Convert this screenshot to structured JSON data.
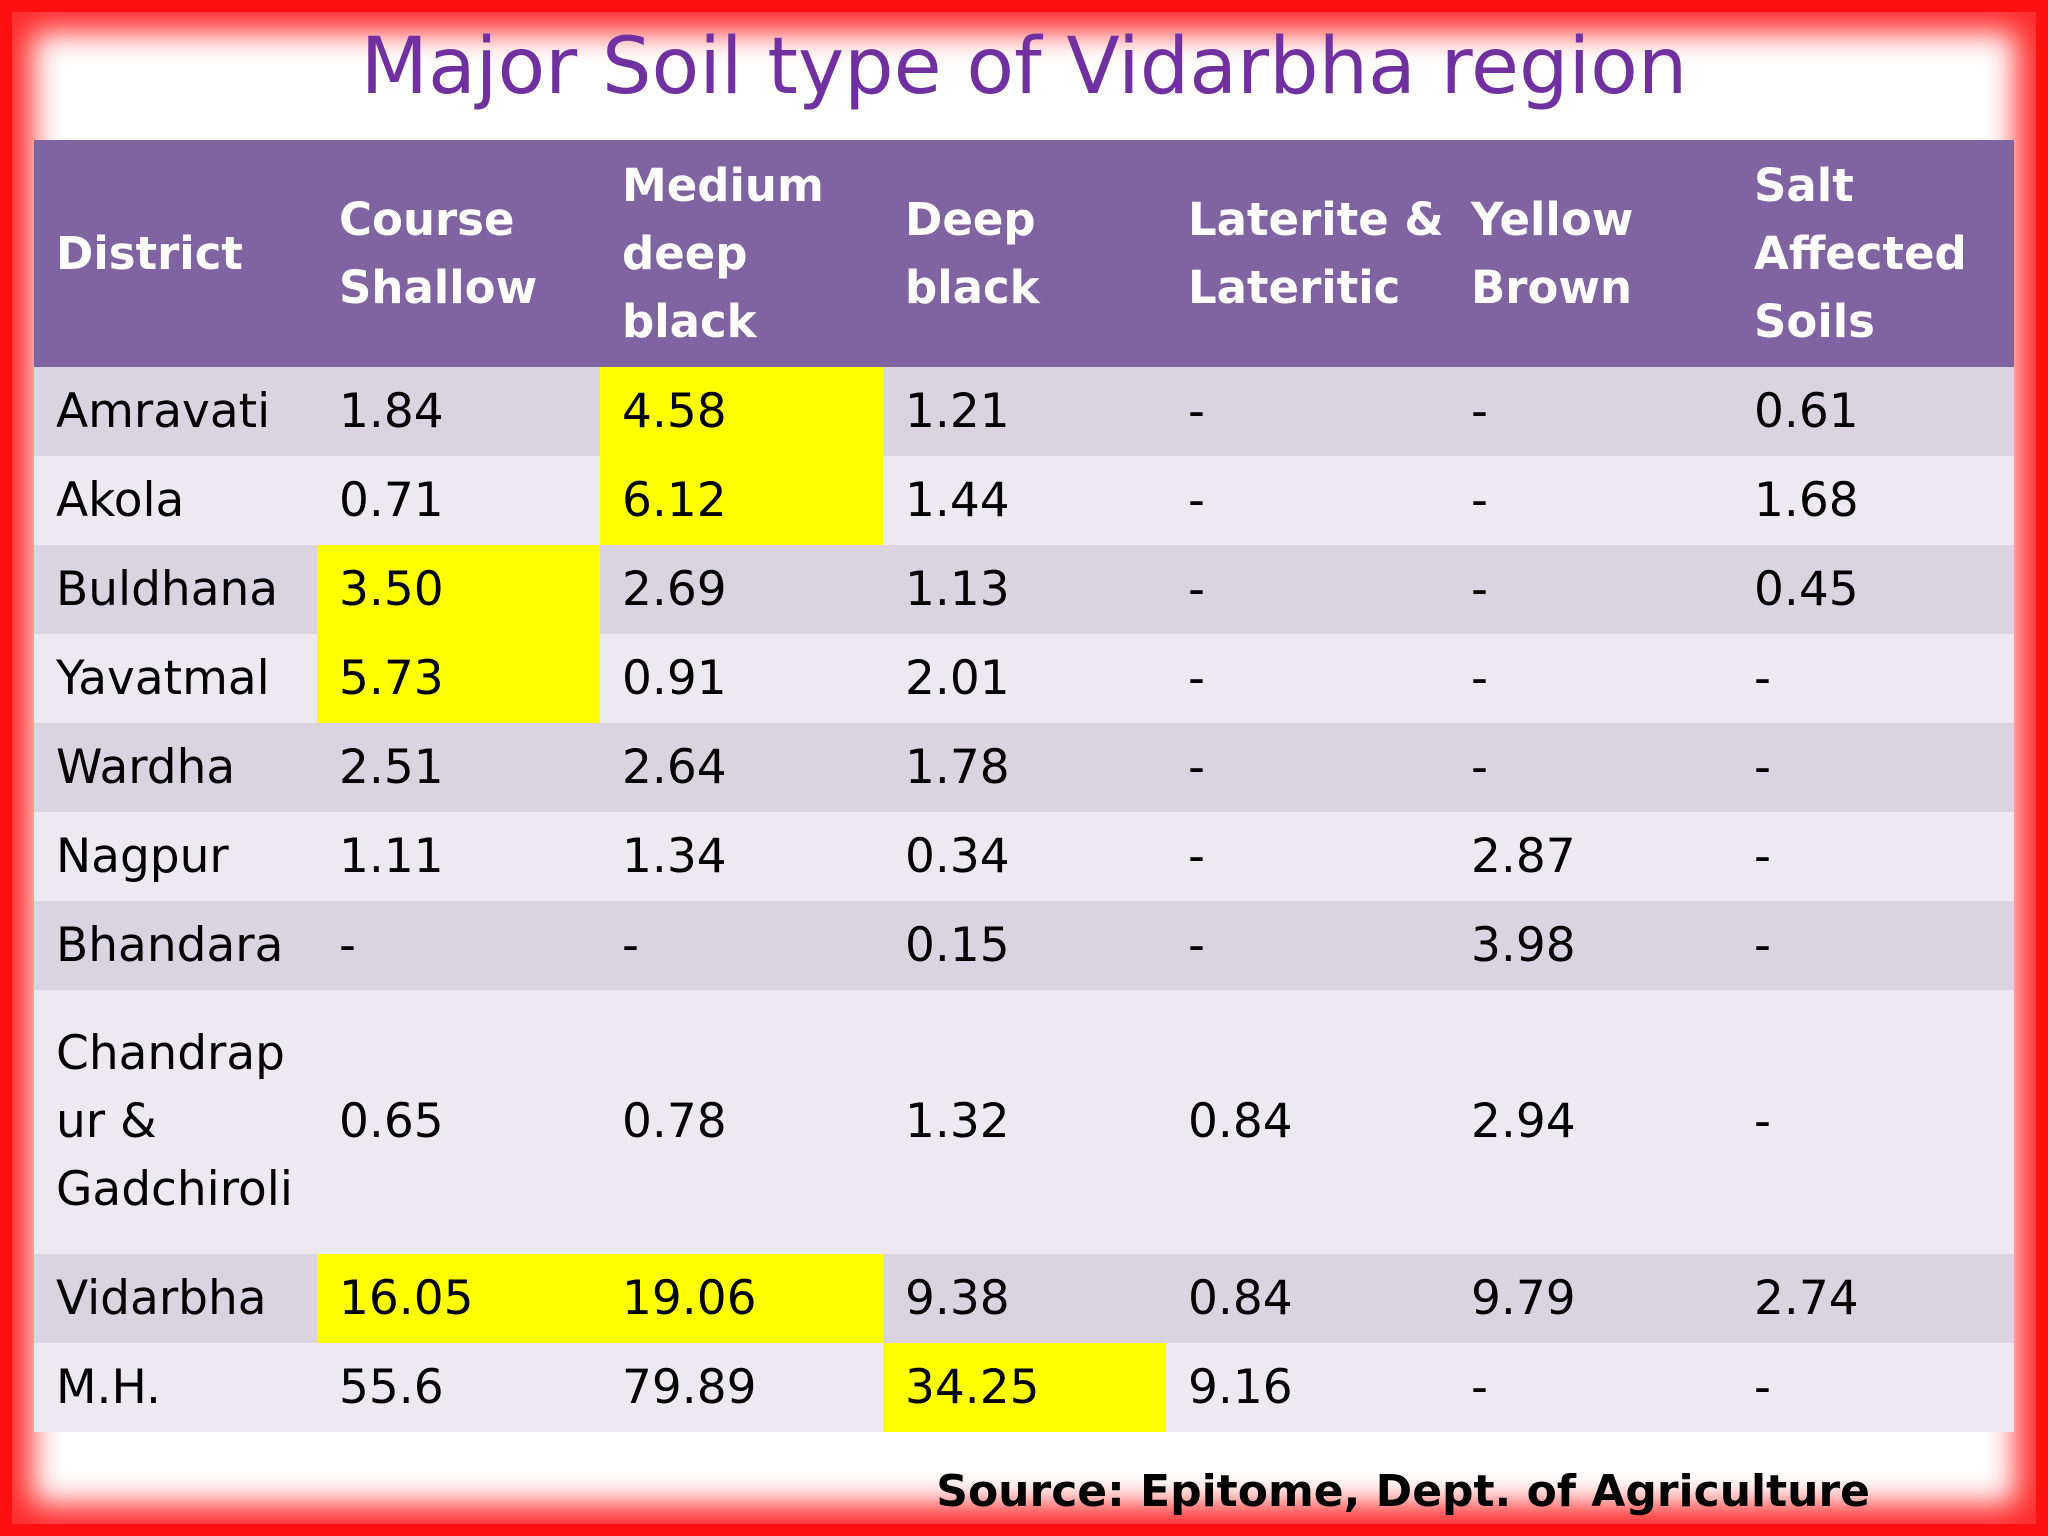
{
  "title": "Major Soil type of  Vidarbha region",
  "columns": [
    [
      "District"
    ],
    [
      "Course",
      "Shallow"
    ],
    [
      "Medium",
      "deep",
      "black"
    ],
    [
      "Deep",
      "black"
    ],
    [
      "Laterite &",
      "Lateritic"
    ],
    [
      "Yellow",
      "Brown"
    ],
    [
      "Salt",
      "Affected",
      "Soils"
    ]
  ],
  "rows": [
    {
      "district": [
        "Amravati"
      ],
      "values": [
        "1.84",
        "4.58",
        "1.21",
        "-",
        "-",
        "0.61"
      ],
      "highlight": [
        false,
        true,
        false,
        false,
        false,
        false
      ]
    },
    {
      "district": [
        "Akola"
      ],
      "values": [
        "0.71",
        "6.12",
        "1.44",
        "-",
        "-",
        "1.68"
      ],
      "highlight": [
        false,
        true,
        false,
        false,
        false,
        false
      ]
    },
    {
      "district": [
        "Buldhana"
      ],
      "values": [
        "3.50",
        "2.69",
        "1.13",
        "-",
        "-",
        "0.45"
      ],
      "highlight": [
        true,
        false,
        false,
        false,
        false,
        false
      ]
    },
    {
      "district": [
        "Yavatmal"
      ],
      "values": [
        "5.73",
        "0.91",
        "2.01",
        "-",
        "-",
        "-"
      ],
      "highlight": [
        true,
        false,
        false,
        false,
        false,
        false
      ]
    },
    {
      "district": [
        "Wardha"
      ],
      "values": [
        "2.51",
        "2.64",
        "1.78",
        "-",
        "-",
        "-"
      ],
      "highlight": [
        false,
        false,
        false,
        false,
        false,
        false
      ]
    },
    {
      "district": [
        "Nagpur"
      ],
      "values": [
        "1.11",
        "1.34",
        "0.34",
        "-",
        "2.87",
        "-"
      ],
      "highlight": [
        false,
        false,
        false,
        false,
        false,
        false
      ]
    },
    {
      "district": [
        "Bhandara"
      ],
      "values": [
        "-",
        "-",
        "0.15",
        "-",
        "3.98",
        "-"
      ],
      "highlight": [
        false,
        false,
        false,
        false,
        false,
        false
      ]
    },
    {
      "district": [
        "Chandrap",
        "ur &",
        "Gadchiroli"
      ],
      "values": [
        "0.65",
        "0.78",
        "1.32",
        "0.84",
        "2.94",
        "-"
      ],
      "highlight": [
        false,
        false,
        false,
        false,
        false,
        false
      ]
    },
    {
      "district": [
        "Vidarbha"
      ],
      "values": [
        "16.05",
        "19.06",
        "9.38",
        "0.84",
        "9.79",
        "2.74"
      ],
      "highlight": [
        true,
        true,
        false,
        false,
        false,
        false
      ]
    },
    {
      "district": [
        "M.H."
      ],
      "values": [
        "55.6",
        "79.89",
        "34.25",
        "9.16",
        "-",
        "-"
      ],
      "highlight": [
        false,
        false,
        true,
        false,
        false,
        false
      ]
    }
  ],
  "source": "Source: Epitome, Dept. of Agriculture",
  "colors": {
    "title": "#7030a0",
    "header_bg": "#8064a2",
    "row_dark": "#d9d4e0",
    "row_light": "#ece9f0",
    "highlight": "#ffff00",
    "frame": "#ff1010"
  }
}
